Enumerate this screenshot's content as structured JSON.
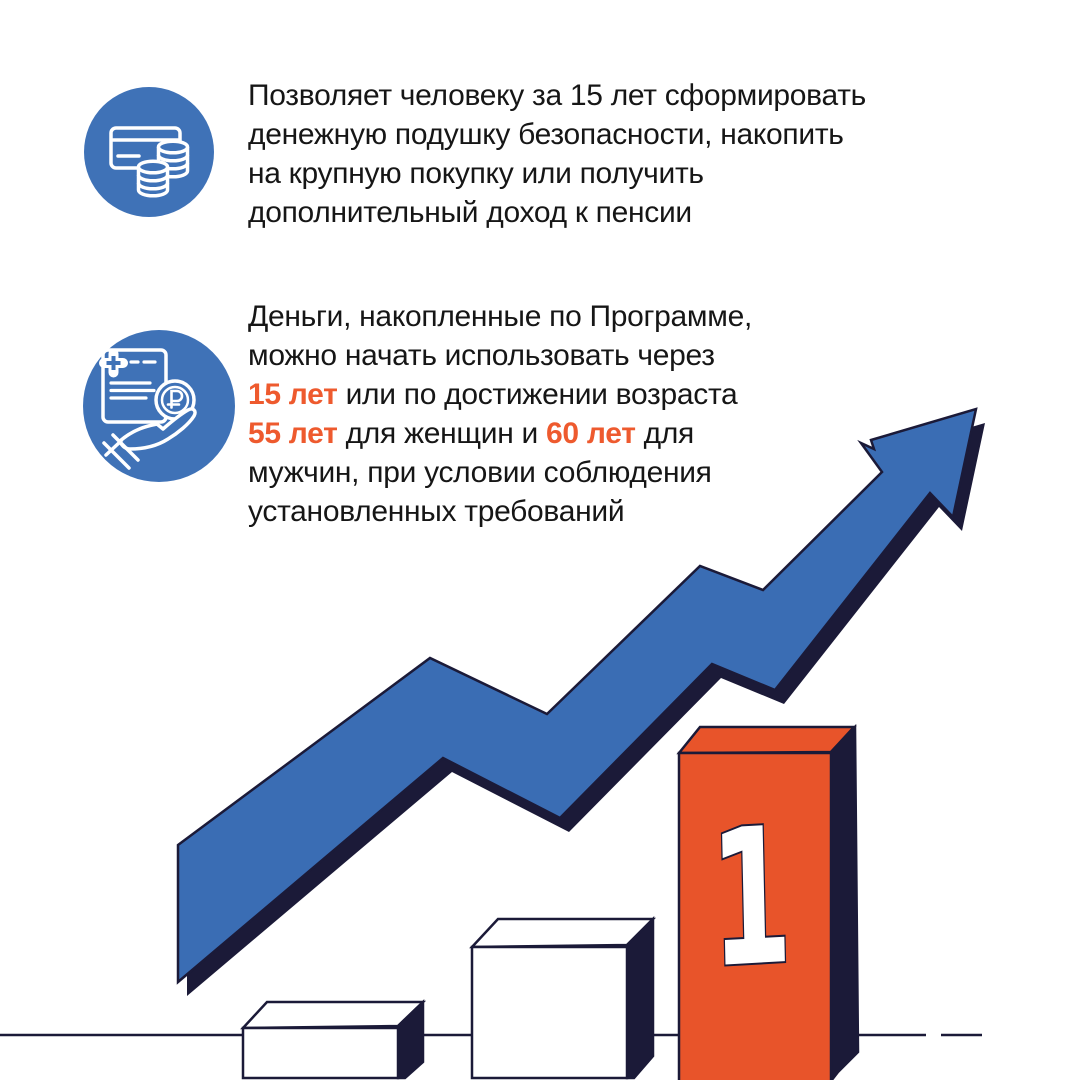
{
  "colors": {
    "icon_blue": "#3f72b7",
    "arrow_blue": "#3a6db4",
    "navy": "#1b1a38",
    "orange": "#e8542a",
    "orange_text": "#ee5a2e",
    "text_dark": "#161616",
    "white": "#ffffff"
  },
  "bullets": [
    {
      "icon": "bank-card-and-coins-icon",
      "text": "Позволяет человеку за 15 лет сформировать\nденежную подушку безопасности, накопить\nна крупную покупку или получить\nдополнительный доход к пенсии"
    },
    {
      "icon": "document-ruble-hand-icon",
      "segments": [
        {
          "text": "Деньги, накопленные по Программе,\nможно начать использовать через\n"
        },
        {
          "text": "15 лет",
          "highlight": true
        },
        {
          "text": " или по достижении возраста\n"
        },
        {
          "text": "55 лет",
          "highlight": true
        },
        {
          "text": " для женщин и "
        },
        {
          "text": "60 лет",
          "highlight": true
        },
        {
          "text": " для\nмужчин, при условии соблюдения\nустановленных требований"
        }
      ]
    }
  ],
  "illustration": {
    "rank_label": "1",
    "description": "growth-arrow-over-podium"
  }
}
